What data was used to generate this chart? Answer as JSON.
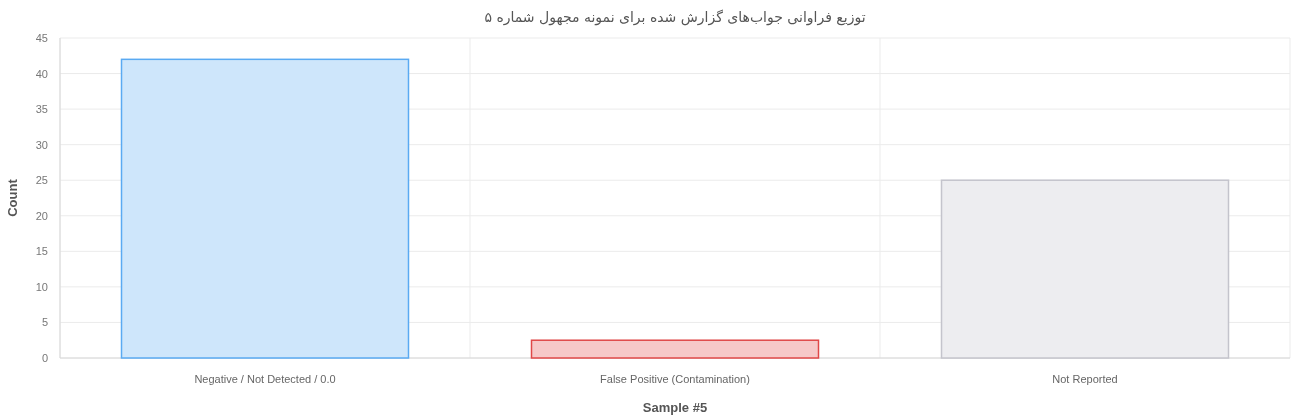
{
  "chart_data": {
    "type": "bar",
    "title": "توزیع فراوانی جواب‌های گزارش شده برای نمونه مجهول شماره ۵",
    "xlabel": "Sample #5",
    "ylabel": "Count",
    "categories": [
      "Negative / Not Detected / 0.0",
      "False Positive (Contamination)",
      "Not Reported"
    ],
    "values": [
      42,
      2.5,
      25
    ],
    "colors": [
      "#5aaaf2",
      "#e04848",
      "#c4c4cc"
    ],
    "ylim": [
      0,
      45
    ],
    "yticks": [
      0,
      5,
      10,
      15,
      20,
      25,
      30,
      35,
      40,
      45
    ],
    "grid": true
  }
}
